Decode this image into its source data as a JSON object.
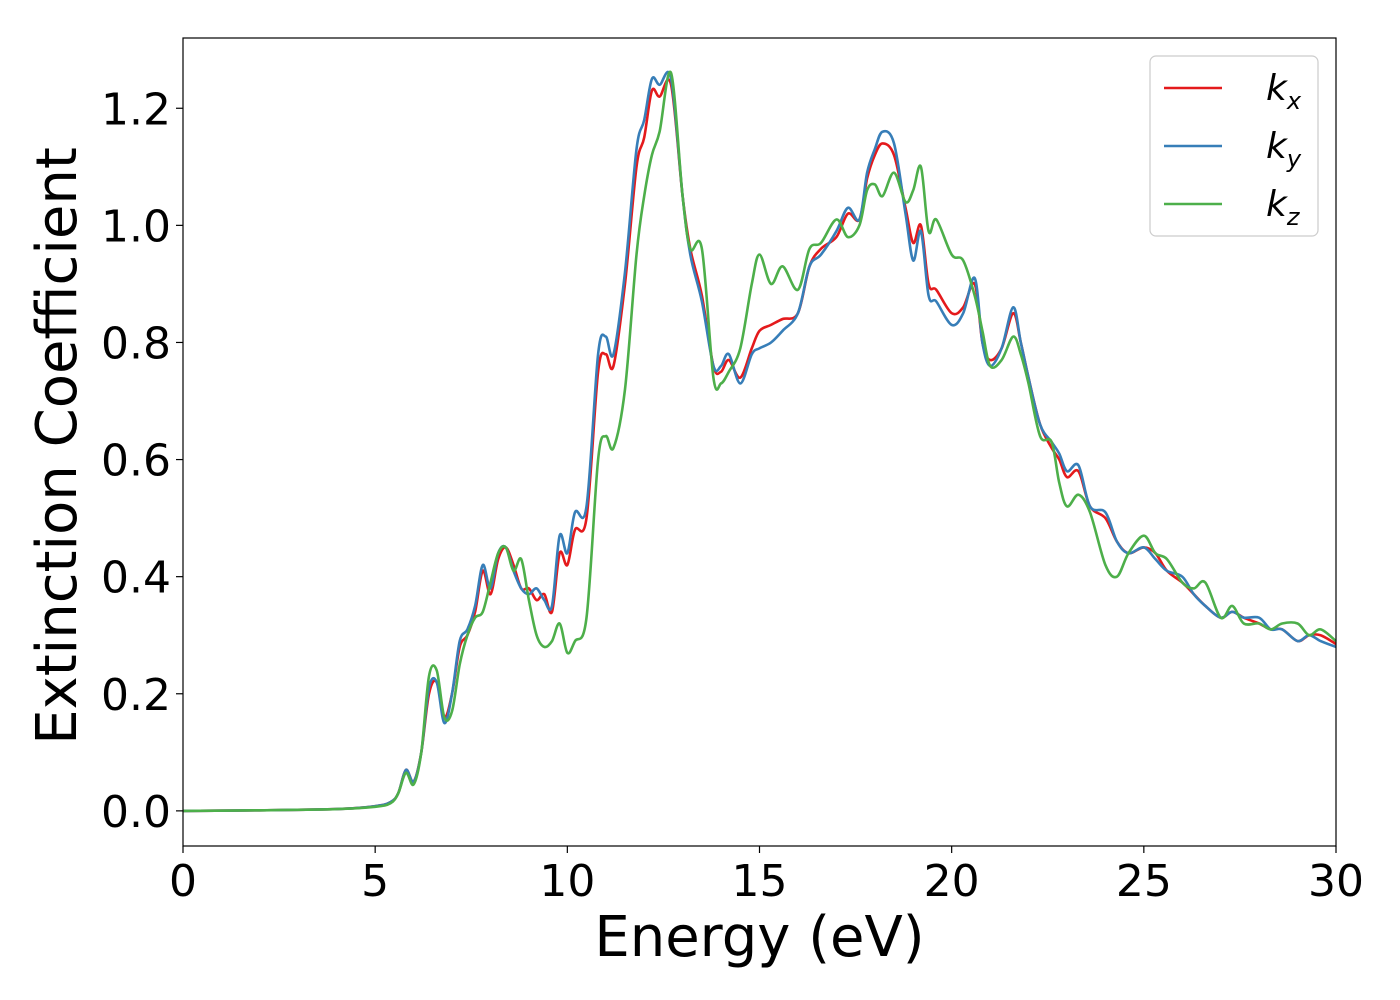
{
  "chart_data": {
    "type": "line",
    "xlabel": "Energy (eV)",
    "ylabel": "Extinction Coefficient",
    "xlim": [
      0,
      30
    ],
    "ylim": [
      -0.06,
      1.32
    ],
    "xticks": [
      0,
      5,
      10,
      15,
      20,
      25,
      30
    ],
    "xtick_labels": [
      "0",
      "5",
      "10",
      "15",
      "20",
      "25",
      "30"
    ],
    "yticks": [
      0.0,
      0.2,
      0.4,
      0.6,
      0.8,
      1.0,
      1.2
    ],
    "ytick_labels": [
      "0.0",
      "0.2",
      "0.4",
      "0.6",
      "0.8",
      "1.0",
      "1.2"
    ],
    "grid": false,
    "legend_position": "top-right",
    "series": [
      {
        "name": "kx",
        "label_main": "k",
        "label_sub": "x",
        "color": "#e41a1c",
        "points": [
          [
            0,
            0.0
          ],
          [
            2,
            0.001
          ],
          [
            4,
            0.003
          ],
          [
            5,
            0.008
          ],
          [
            5.4,
            0.015
          ],
          [
            5.6,
            0.03
          ],
          [
            5.8,
            0.07
          ],
          [
            6.0,
            0.05
          ],
          [
            6.2,
            0.1
          ],
          [
            6.4,
            0.2
          ],
          [
            6.6,
            0.22
          ],
          [
            6.8,
            0.16
          ],
          [
            7.0,
            0.2
          ],
          [
            7.2,
            0.28
          ],
          [
            7.4,
            0.3
          ],
          [
            7.6,
            0.34
          ],
          [
            7.8,
            0.41
          ],
          [
            8.0,
            0.37
          ],
          [
            8.2,
            0.43
          ],
          [
            8.4,
            0.45
          ],
          [
            8.6,
            0.42
          ],
          [
            8.8,
            0.38
          ],
          [
            9.0,
            0.38
          ],
          [
            9.2,
            0.36
          ],
          [
            9.4,
            0.37
          ],
          [
            9.6,
            0.34
          ],
          [
            9.8,
            0.44
          ],
          [
            10.0,
            0.42
          ],
          [
            10.2,
            0.48
          ],
          [
            10.5,
            0.5
          ],
          [
            10.8,
            0.75
          ],
          [
            11.0,
            0.78
          ],
          [
            11.2,
            0.76
          ],
          [
            11.5,
            0.9
          ],
          [
            11.8,
            1.1
          ],
          [
            12.0,
            1.15
          ],
          [
            12.2,
            1.23
          ],
          [
            12.4,
            1.22
          ],
          [
            12.7,
            1.24
          ],
          [
            13.0,
            1.05
          ],
          [
            13.2,
            0.96
          ],
          [
            13.5,
            0.88
          ],
          [
            13.8,
            0.76
          ],
          [
            14.0,
            0.75
          ],
          [
            14.2,
            0.77
          ],
          [
            14.5,
            0.74
          ],
          [
            14.8,
            0.79
          ],
          [
            15.0,
            0.82
          ],
          [
            15.3,
            0.83
          ],
          [
            15.6,
            0.84
          ],
          [
            16.0,
            0.85
          ],
          [
            16.3,
            0.93
          ],
          [
            16.6,
            0.96
          ],
          [
            17.0,
            0.98
          ],
          [
            17.3,
            1.02
          ],
          [
            17.6,
            1.01
          ],
          [
            17.8,
            1.08
          ],
          [
            18.0,
            1.12
          ],
          [
            18.2,
            1.14
          ],
          [
            18.5,
            1.12
          ],
          [
            18.8,
            1.03
          ],
          [
            19.0,
            0.97
          ],
          [
            19.2,
            1.0
          ],
          [
            19.4,
            0.9
          ],
          [
            19.6,
            0.89
          ],
          [
            20.0,
            0.85
          ],
          [
            20.3,
            0.86
          ],
          [
            20.6,
            0.9
          ],
          [
            20.8,
            0.8
          ],
          [
            21.0,
            0.77
          ],
          [
            21.3,
            0.79
          ],
          [
            21.6,
            0.85
          ],
          [
            21.8,
            0.8
          ],
          [
            22.0,
            0.74
          ],
          [
            22.3,
            0.66
          ],
          [
            22.6,
            0.62
          ],
          [
            22.8,
            0.6
          ],
          [
            23.0,
            0.57
          ],
          [
            23.3,
            0.58
          ],
          [
            23.6,
            0.52
          ],
          [
            24.0,
            0.5
          ],
          [
            24.3,
            0.46
          ],
          [
            24.6,
            0.44
          ],
          [
            25.0,
            0.45
          ],
          [
            25.3,
            0.44
          ],
          [
            25.6,
            0.41
          ],
          [
            26.0,
            0.39
          ],
          [
            26.3,
            0.37
          ],
          [
            26.6,
            0.35
          ],
          [
            27.0,
            0.33
          ],
          [
            27.3,
            0.34
          ],
          [
            27.6,
            0.33
          ],
          [
            28.0,
            0.32
          ],
          [
            28.3,
            0.31
          ],
          [
            28.6,
            0.31
          ],
          [
            29.0,
            0.29
          ],
          [
            29.3,
            0.3
          ],
          [
            29.6,
            0.3
          ],
          [
            30.0,
            0.285
          ]
        ]
      },
      {
        "name": "ky",
        "label_main": "k",
        "label_sub": "y",
        "color": "#377eb8",
        "points": [
          [
            0,
            0.0
          ],
          [
            2,
            0.001
          ],
          [
            4,
            0.003
          ],
          [
            5,
            0.008
          ],
          [
            5.4,
            0.015
          ],
          [
            5.6,
            0.03
          ],
          [
            5.8,
            0.07
          ],
          [
            6.0,
            0.05
          ],
          [
            6.2,
            0.1
          ],
          [
            6.4,
            0.21
          ],
          [
            6.6,
            0.22
          ],
          [
            6.8,
            0.15
          ],
          [
            7.0,
            0.2
          ],
          [
            7.2,
            0.29
          ],
          [
            7.4,
            0.31
          ],
          [
            7.6,
            0.35
          ],
          [
            7.8,
            0.42
          ],
          [
            8.0,
            0.38
          ],
          [
            8.2,
            0.44
          ],
          [
            8.4,
            0.45
          ],
          [
            8.6,
            0.41
          ],
          [
            8.8,
            0.38
          ],
          [
            9.0,
            0.37
          ],
          [
            9.2,
            0.38
          ],
          [
            9.4,
            0.36
          ],
          [
            9.6,
            0.35
          ],
          [
            9.8,
            0.47
          ],
          [
            10.0,
            0.44
          ],
          [
            10.2,
            0.51
          ],
          [
            10.5,
            0.52
          ],
          [
            10.8,
            0.78
          ],
          [
            11.0,
            0.81
          ],
          [
            11.2,
            0.78
          ],
          [
            11.5,
            0.92
          ],
          [
            11.8,
            1.13
          ],
          [
            12.0,
            1.18
          ],
          [
            12.2,
            1.25
          ],
          [
            12.4,
            1.24
          ],
          [
            12.7,
            1.25
          ],
          [
            13.0,
            1.05
          ],
          [
            13.2,
            0.95
          ],
          [
            13.5,
            0.87
          ],
          [
            13.8,
            0.76
          ],
          [
            14.0,
            0.76
          ],
          [
            14.2,
            0.78
          ],
          [
            14.5,
            0.73
          ],
          [
            14.8,
            0.78
          ],
          [
            15.0,
            0.79
          ],
          [
            15.3,
            0.8
          ],
          [
            15.6,
            0.82
          ],
          [
            16.0,
            0.85
          ],
          [
            16.3,
            0.93
          ],
          [
            16.6,
            0.95
          ],
          [
            17.0,
            0.99
          ],
          [
            17.3,
            1.03
          ],
          [
            17.6,
            1.01
          ],
          [
            17.8,
            1.09
          ],
          [
            18.0,
            1.13
          ],
          [
            18.2,
            1.16
          ],
          [
            18.5,
            1.14
          ],
          [
            18.8,
            1.02
          ],
          [
            19.0,
            0.94
          ],
          [
            19.2,
            0.99
          ],
          [
            19.4,
            0.88
          ],
          [
            19.6,
            0.87
          ],
          [
            20.0,
            0.83
          ],
          [
            20.3,
            0.85
          ],
          [
            20.6,
            0.91
          ],
          [
            20.8,
            0.8
          ],
          [
            21.0,
            0.76
          ],
          [
            21.3,
            0.79
          ],
          [
            21.6,
            0.86
          ],
          [
            21.8,
            0.8
          ],
          [
            22.0,
            0.74
          ],
          [
            22.3,
            0.66
          ],
          [
            22.6,
            0.63
          ],
          [
            22.8,
            0.61
          ],
          [
            23.0,
            0.58
          ],
          [
            23.3,
            0.59
          ],
          [
            23.6,
            0.52
          ],
          [
            24.0,
            0.51
          ],
          [
            24.3,
            0.46
          ],
          [
            24.6,
            0.44
          ],
          [
            25.0,
            0.45
          ],
          [
            25.3,
            0.43
          ],
          [
            25.6,
            0.41
          ],
          [
            26.0,
            0.4
          ],
          [
            26.3,
            0.37
          ],
          [
            26.6,
            0.35
          ],
          [
            27.0,
            0.33
          ],
          [
            27.3,
            0.34
          ],
          [
            27.6,
            0.33
          ],
          [
            28.0,
            0.33
          ],
          [
            28.3,
            0.31
          ],
          [
            28.6,
            0.31
          ],
          [
            29.0,
            0.29
          ],
          [
            29.3,
            0.3
          ],
          [
            29.6,
            0.29
          ],
          [
            30.0,
            0.28
          ]
        ]
      },
      {
        "name": "kz",
        "label_main": "k",
        "label_sub": "z",
        "color": "#4daf4a",
        "points": [
          [
            0,
            0.0
          ],
          [
            2,
            0.001
          ],
          [
            4,
            0.003
          ],
          [
            5,
            0.007
          ],
          [
            5.4,
            0.013
          ],
          [
            5.6,
            0.03
          ],
          [
            5.8,
            0.065
          ],
          [
            6.0,
            0.045
          ],
          [
            6.2,
            0.1
          ],
          [
            6.4,
            0.23
          ],
          [
            6.6,
            0.24
          ],
          [
            6.8,
            0.16
          ],
          [
            7.0,
            0.17
          ],
          [
            7.2,
            0.25
          ],
          [
            7.4,
            0.3
          ],
          [
            7.6,
            0.33
          ],
          [
            7.8,
            0.34
          ],
          [
            8.0,
            0.39
          ],
          [
            8.2,
            0.44
          ],
          [
            8.4,
            0.45
          ],
          [
            8.6,
            0.41
          ],
          [
            8.8,
            0.43
          ],
          [
            9.0,
            0.36
          ],
          [
            9.2,
            0.3
          ],
          [
            9.4,
            0.28
          ],
          [
            9.6,
            0.29
          ],
          [
            9.8,
            0.32
          ],
          [
            10.0,
            0.27
          ],
          [
            10.2,
            0.29
          ],
          [
            10.5,
            0.33
          ],
          [
            10.8,
            0.6
          ],
          [
            11.0,
            0.64
          ],
          [
            11.2,
            0.62
          ],
          [
            11.5,
            0.72
          ],
          [
            11.8,
            0.95
          ],
          [
            12.0,
            1.05
          ],
          [
            12.2,
            1.12
          ],
          [
            12.4,
            1.16
          ],
          [
            12.7,
            1.26
          ],
          [
            13.0,
            1.05
          ],
          [
            13.2,
            0.96
          ],
          [
            13.5,
            0.96
          ],
          [
            13.8,
            0.74
          ],
          [
            14.0,
            0.73
          ],
          [
            14.2,
            0.75
          ],
          [
            14.5,
            0.79
          ],
          [
            14.8,
            0.9
          ],
          [
            15.0,
            0.95
          ],
          [
            15.3,
            0.9
          ],
          [
            15.6,
            0.93
          ],
          [
            16.0,
            0.89
          ],
          [
            16.3,
            0.96
          ],
          [
            16.6,
            0.97
          ],
          [
            17.0,
            1.01
          ],
          [
            17.3,
            0.98
          ],
          [
            17.6,
            1.0
          ],
          [
            17.8,
            1.06
          ],
          [
            18.0,
            1.07
          ],
          [
            18.2,
            1.05
          ],
          [
            18.5,
            1.09
          ],
          [
            18.8,
            1.04
          ],
          [
            19.0,
            1.06
          ],
          [
            19.2,
            1.1
          ],
          [
            19.4,
            0.99
          ],
          [
            19.6,
            1.01
          ],
          [
            20.0,
            0.95
          ],
          [
            20.3,
            0.94
          ],
          [
            20.6,
            0.88
          ],
          [
            20.8,
            0.82
          ],
          [
            21.0,
            0.76
          ],
          [
            21.3,
            0.77
          ],
          [
            21.6,
            0.81
          ],
          [
            21.8,
            0.78
          ],
          [
            22.0,
            0.73
          ],
          [
            22.3,
            0.64
          ],
          [
            22.6,
            0.63
          ],
          [
            22.8,
            0.56
          ],
          [
            23.0,
            0.52
          ],
          [
            23.3,
            0.54
          ],
          [
            23.6,
            0.51
          ],
          [
            24.0,
            0.42
          ],
          [
            24.3,
            0.4
          ],
          [
            24.6,
            0.44
          ],
          [
            25.0,
            0.47
          ],
          [
            25.3,
            0.44
          ],
          [
            25.6,
            0.43
          ],
          [
            26.0,
            0.39
          ],
          [
            26.3,
            0.38
          ],
          [
            26.6,
            0.39
          ],
          [
            27.0,
            0.33
          ],
          [
            27.3,
            0.35
          ],
          [
            27.6,
            0.32
          ],
          [
            28.0,
            0.32
          ],
          [
            28.3,
            0.31
          ],
          [
            28.6,
            0.32
          ],
          [
            29.0,
            0.32
          ],
          [
            29.3,
            0.3
          ],
          [
            29.6,
            0.31
          ],
          [
            30.0,
            0.29
          ]
        ]
      }
    ]
  }
}
